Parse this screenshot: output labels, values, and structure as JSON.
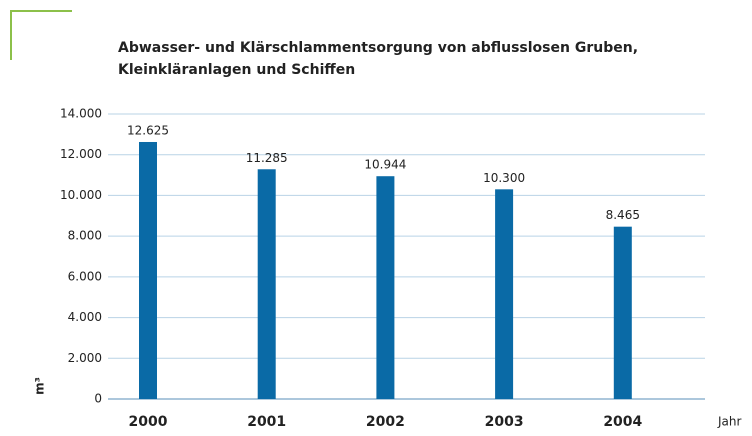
{
  "chart_data": {
    "type": "bar",
    "title": "Abwasser- und Klärschlammentsorgung von abflusslosen Gruben, Kleinkläranlagen und Schiffen",
    "x_label": "Jahr",
    "y_label": "m³",
    "categories": [
      "2000",
      "2001",
      "2002",
      "2003",
      "2004"
    ],
    "values": [
      12625,
      11285,
      10944,
      10300,
      8465
    ],
    "value_labels": [
      "12.625",
      "11.285",
      "10.944",
      "10.300",
      "8.465"
    ],
    "color": "#0a6aa6",
    "ylim": [
      0,
      14000
    ],
    "yticks": [
      0,
      {
        "value": 2000,
        "label": "2.000"
      },
      {
        "value": 4000,
        "label": "4.000"
      },
      {
        "value": 6000,
        "label": "6.000"
      },
      {
        "value": 8000,
        "label": "8.000"
      },
      {
        "value": 10000,
        "label": "10.000"
      },
      {
        "value": 12000,
        "label": "12.000"
      },
      {
        "value": 14000,
        "label": "14.000"
      }
    ],
    "grid": true
  }
}
